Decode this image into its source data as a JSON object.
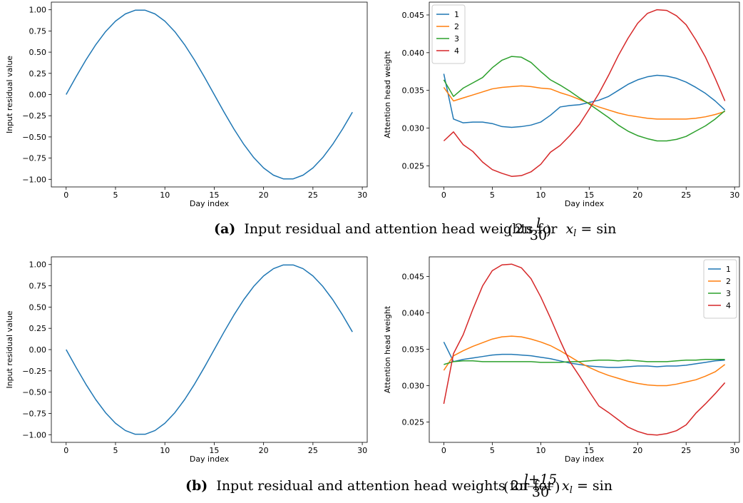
{
  "captions": {
    "a": {
      "tag": "(a)",
      "text": "Input residual and attention head weights for",
      "formula_lhs": "x",
      "formula_sub": "l",
      "formula_mid": " = sin",
      "formula_2pi": "2π",
      "frac_num": "l",
      "frac_den": "30"
    },
    "b": {
      "tag": "(b)",
      "text": "Input residual and attention head weights for for",
      "formula_lhs": "x",
      "formula_sub": "l",
      "formula_mid": " = sin",
      "formula_2pi": "2π",
      "frac_num": "l+15",
      "frac_den": "30"
    }
  },
  "colors": {
    "blue": "#1f77b4",
    "orange": "#ff7f0e",
    "green": "#2ca02c",
    "red": "#d62728"
  },
  "chart_data": [
    {
      "id": "a_left",
      "type": "line",
      "xlabel": "Day index",
      "ylabel": "Input residual value",
      "xlim": [
        -1.5,
        30.5
      ],
      "ylim": [
        -1.09,
        1.09
      ],
      "xticks": [
        0,
        5,
        10,
        15,
        20,
        25,
        30
      ],
      "xtick_labels": [
        "0",
        "5",
        "10",
        "15",
        "20",
        "25",
        "30"
      ],
      "yticks": [
        -1.0,
        -0.75,
        -0.5,
        -0.25,
        0.0,
        0.25,
        0.5,
        0.75,
        1.0
      ],
      "ytick_labels": [
        "−1.00",
        "−0.75",
        "−0.50",
        "−0.25",
        "0.00",
        "0.25",
        "0.50",
        "0.75",
        "1.00"
      ],
      "grid": false,
      "series": [
        {
          "color": "#1f77b4",
          "y": [
            0.0,
            0.208,
            0.407,
            0.588,
            0.743,
            0.866,
            0.951,
            0.995,
            0.995,
            0.951,
            0.866,
            0.743,
            0.588,
            0.407,
            0.208,
            0.0,
            -0.208,
            -0.407,
            -0.588,
            -0.743,
            -0.866,
            -0.951,
            -0.995,
            -0.995,
            -0.951,
            -0.866,
            -0.743,
            -0.588,
            -0.407,
            -0.208
          ]
        }
      ]
    },
    {
      "id": "a_right",
      "type": "line",
      "xlabel": "Day index",
      "ylabel": "Attention head weight",
      "xlim": [
        -1.5,
        30.5
      ],
      "ylim": [
        0.0222,
        0.0467
      ],
      "xticks": [
        0,
        5,
        10,
        15,
        20,
        25,
        30
      ],
      "xtick_labels": [
        "0",
        "5",
        "10",
        "15",
        "20",
        "25",
        "30"
      ],
      "yticks": [
        0.025,
        0.03,
        0.035,
        0.04,
        0.045
      ],
      "ytick_labels": [
        "0.025",
        "0.030",
        "0.035",
        "0.040",
        "0.045"
      ],
      "grid": false,
      "legend": "top-left",
      "series": [
        {
          "name": "1",
          "color": "#1f77b4",
          "y": [
            0.0372,
            0.0312,
            0.0307,
            0.0308,
            0.0308,
            0.0306,
            0.0302,
            0.0301,
            0.0302,
            0.0304,
            0.0308,
            0.0317,
            0.0328,
            0.033,
            0.0331,
            0.0334,
            0.0337,
            0.0342,
            0.035,
            0.0358,
            0.0364,
            0.0368,
            0.037,
            0.0369,
            0.0366,
            0.0361,
            0.0354,
            0.0346,
            0.0336,
            0.0324
          ]
        },
        {
          "name": "2",
          "color": "#ff7f0e",
          "y": [
            0.0354,
            0.0336,
            0.034,
            0.0344,
            0.0348,
            0.0352,
            0.0354,
            0.0355,
            0.0356,
            0.0355,
            0.0353,
            0.0352,
            0.0347,
            0.0343,
            0.0338,
            0.0333,
            0.0328,
            0.0324,
            0.032,
            0.0317,
            0.0315,
            0.0313,
            0.0312,
            0.0312,
            0.0312,
            0.0312,
            0.0313,
            0.0315,
            0.0318,
            0.0322
          ]
        },
        {
          "name": "3",
          "color": "#2ca02c",
          "y": [
            0.0364,
            0.0342,
            0.0353,
            0.036,
            0.0367,
            0.038,
            0.039,
            0.0395,
            0.0394,
            0.0387,
            0.0375,
            0.0364,
            0.0357,
            0.0349,
            0.034,
            0.0332,
            0.0323,
            0.0314,
            0.0304,
            0.0296,
            0.029,
            0.0286,
            0.0283,
            0.0283,
            0.0285,
            0.0289,
            0.0296,
            0.0303,
            0.0312,
            0.0323
          ]
        },
        {
          "name": "4",
          "color": "#d62728",
          "y": [
            0.0283,
            0.0295,
            0.0278,
            0.0269,
            0.0255,
            0.0245,
            0.024,
            0.0236,
            0.0237,
            0.0242,
            0.0252,
            0.0268,
            0.0277,
            0.029,
            0.0305,
            0.0325,
            0.0346,
            0.037,
            0.0396,
            0.0419,
            0.0439,
            0.0452,
            0.0457,
            0.0456,
            0.0449,
            0.0437,
            0.0417,
            0.0394,
            0.0366,
            0.0336
          ]
        }
      ]
    },
    {
      "id": "b_left",
      "type": "line",
      "xlabel": "Day index",
      "ylabel": "Input residual value",
      "xlim": [
        -1.5,
        30.5
      ],
      "ylim": [
        -1.09,
        1.09
      ],
      "xticks": [
        0,
        5,
        10,
        15,
        20,
        25,
        30
      ],
      "xtick_labels": [
        "0",
        "5",
        "10",
        "15",
        "20",
        "25",
        "30"
      ],
      "yticks": [
        -1.0,
        -0.75,
        -0.5,
        -0.25,
        0.0,
        0.25,
        0.5,
        0.75,
        1.0
      ],
      "ytick_labels": [
        "−1.00",
        "−0.75",
        "−0.50",
        "−0.25",
        "0.00",
        "0.25",
        "0.50",
        "0.75",
        "1.00"
      ],
      "grid": false,
      "series": [
        {
          "color": "#1f77b4",
          "y": [
            0.0,
            -0.208,
            -0.407,
            -0.588,
            -0.743,
            -0.866,
            -0.951,
            -0.995,
            -0.995,
            -0.951,
            -0.866,
            -0.743,
            -0.588,
            -0.407,
            -0.208,
            0.0,
            0.208,
            0.407,
            0.588,
            0.743,
            0.866,
            0.951,
            0.995,
            0.995,
            0.951,
            0.866,
            0.743,
            0.588,
            0.407,
            0.208
          ]
        }
      ]
    },
    {
      "id": "b_right",
      "type": "line",
      "xlabel": "Day index",
      "ylabel": "Attention head weight",
      "xlim": [
        -1.5,
        30.5
      ],
      "ylim": [
        0.0222,
        0.0477
      ],
      "xticks": [
        0,
        5,
        10,
        15,
        20,
        25,
        30
      ],
      "xtick_labels": [
        "0",
        "5",
        "10",
        "15",
        "20",
        "25",
        "30"
      ],
      "yticks": [
        0.025,
        0.03,
        0.035,
        0.04,
        0.045
      ],
      "ytick_labels": [
        "0.025",
        "0.030",
        "0.035",
        "0.040",
        "0.045"
      ],
      "grid": false,
      "legend": "top-right",
      "series": [
        {
          "name": "1",
          "color": "#1f77b4",
          "y": [
            0.036,
            0.0333,
            0.0336,
            0.0338,
            0.034,
            0.0342,
            0.0343,
            0.0343,
            0.0342,
            0.0341,
            0.0339,
            0.0337,
            0.0334,
            0.0331,
            0.0329,
            0.0327,
            0.0326,
            0.0325,
            0.0325,
            0.0326,
            0.0327,
            0.0327,
            0.0326,
            0.0327,
            0.0327,
            0.0328,
            0.033,
            0.0332,
            0.0334,
            0.0335
          ]
        },
        {
          "name": "2",
          "color": "#ff7f0e",
          "y": [
            0.0321,
            0.0341,
            0.0348,
            0.0354,
            0.0359,
            0.0364,
            0.0367,
            0.0368,
            0.0367,
            0.0364,
            0.036,
            0.0355,
            0.0348,
            0.034,
            0.0332,
            0.0325,
            0.0319,
            0.0314,
            0.031,
            0.0306,
            0.0303,
            0.0301,
            0.03,
            0.03,
            0.0302,
            0.0305,
            0.0308,
            0.0313,
            0.0319,
            0.0329
          ]
        },
        {
          "name": "3",
          "color": "#2ca02c",
          "y": [
            0.0329,
            0.0333,
            0.0334,
            0.0334,
            0.0333,
            0.0333,
            0.0333,
            0.0333,
            0.0333,
            0.0333,
            0.0332,
            0.0332,
            0.0332,
            0.0333,
            0.0333,
            0.0334,
            0.0335,
            0.0335,
            0.0334,
            0.0335,
            0.0334,
            0.0333,
            0.0333,
            0.0333,
            0.0334,
            0.0335,
            0.0335,
            0.0336,
            0.0336,
            0.0336
          ]
        },
        {
          "name": "4",
          "color": "#d62728",
          "y": [
            0.0275,
            0.0344,
            0.037,
            0.0405,
            0.0437,
            0.0458,
            0.0466,
            0.0467,
            0.0462,
            0.0447,
            0.0422,
            0.0393,
            0.0362,
            0.0333,
            0.0313,
            0.0292,
            0.0272,
            0.0263,
            0.0253,
            0.0243,
            0.0237,
            0.0233,
            0.0232,
            0.0234,
            0.0238,
            0.0246,
            0.0262,
            0.0275,
            0.0289,
            0.0304
          ]
        }
      ]
    }
  ]
}
